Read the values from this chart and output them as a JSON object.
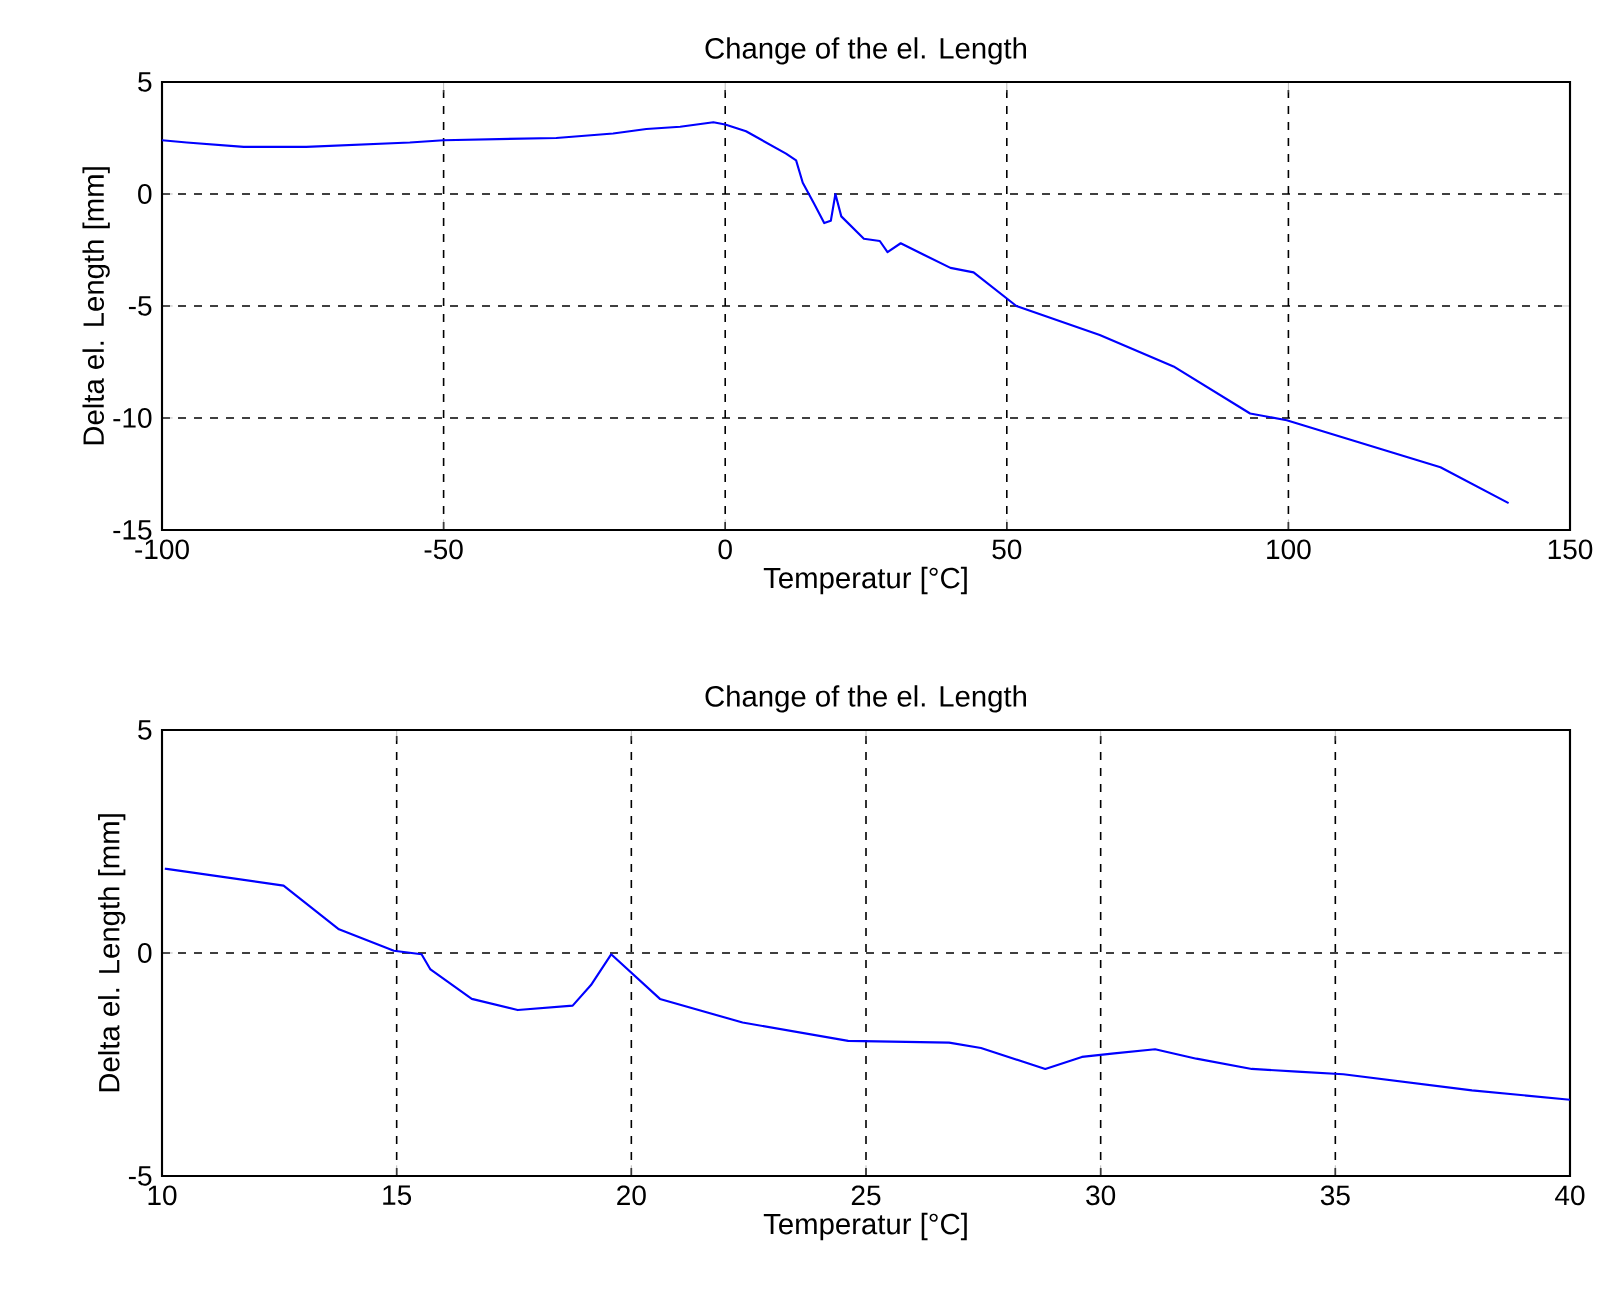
{
  "chart_data": [
    {
      "type": "line",
      "title": "Change of the el. Length",
      "xlabel": "Temperatur [°C]",
      "ylabel": "Delta el. Length [mm]",
      "color": "#0000ff",
      "grid": true,
      "x": [
        -100,
        -95.6,
        -85.5,
        -74.4,
        -56,
        -50,
        -30,
        -19.9,
        -14,
        -8,
        -2.1,
        0,
        3.7,
        10.8,
        12.59,
        13.77,
        15.72,
        17.58,
        18.75,
        19.57,
        20.61,
        24.62,
        27.45,
        28.82,
        31.16,
        35.17,
        40,
        44.1,
        51.7,
        66.5,
        79.6,
        93.2,
        99.7,
        127,
        139.1
      ],
      "values": [
        2.4,
        2.3,
        2.1,
        2.1,
        2.3,
        2.4,
        2.5,
        2.7,
        2.9,
        3.0,
        3.2,
        3.1,
        2.8,
        1.8,
        1.5,
        0.5,
        -0.4,
        -1.3,
        -1.2,
        0.0,
        -1.0,
        -2.0,
        -2.1,
        -2.6,
        -2.2,
        -2.7,
        -3.3,
        -3.5,
        -5.0,
        -6.3,
        -7.7,
        -9.8,
        -10.1,
        -12.2,
        -13.8
      ],
      "xlim": [
        -100,
        150
      ],
      "ylim": [
        -15,
        5
      ],
      "xticks": [
        -100,
        -50,
        0,
        50,
        100,
        150
      ],
      "yticks": [
        -15,
        -10,
        -5,
        0,
        5
      ]
    },
    {
      "type": "line",
      "title": "Change of the el. Length",
      "xlabel": "Temperatur [°C]",
      "ylabel": "Delta el. Length [mm]",
      "color": "#0000ff",
      "grid": true,
      "x": [
        10.06,
        12.59,
        13.77,
        14.94,
        15.53,
        15.72,
        16.6,
        17.58,
        18.75,
        19.14,
        19.57,
        20.61,
        22.37,
        24.62,
        26.77,
        27.45,
        28.82,
        29.6,
        30.29,
        31.16,
        32.04,
        33.22,
        34.19,
        35.17,
        37.91,
        40
      ],
      "values": [
        1.89,
        1.51,
        0.53,
        0.05,
        -0.03,
        -0.37,
        -1.03,
        -1.28,
        -1.18,
        -0.72,
        -0.03,
        -1.03,
        -1.56,
        -1.97,
        -2.01,
        -2.13,
        -2.6,
        -2.33,
        -2.25,
        -2.16,
        -2.37,
        -2.6,
        -2.66,
        -2.72,
        -3.08,
        -3.29
      ],
      "xlim": [
        10,
        40
      ],
      "ylim": [
        -5,
        5
      ],
      "xticks": [
        10,
        15,
        20,
        25,
        30,
        35,
        40
      ],
      "yticks": [
        -5,
        0,
        5
      ]
    }
  ]
}
